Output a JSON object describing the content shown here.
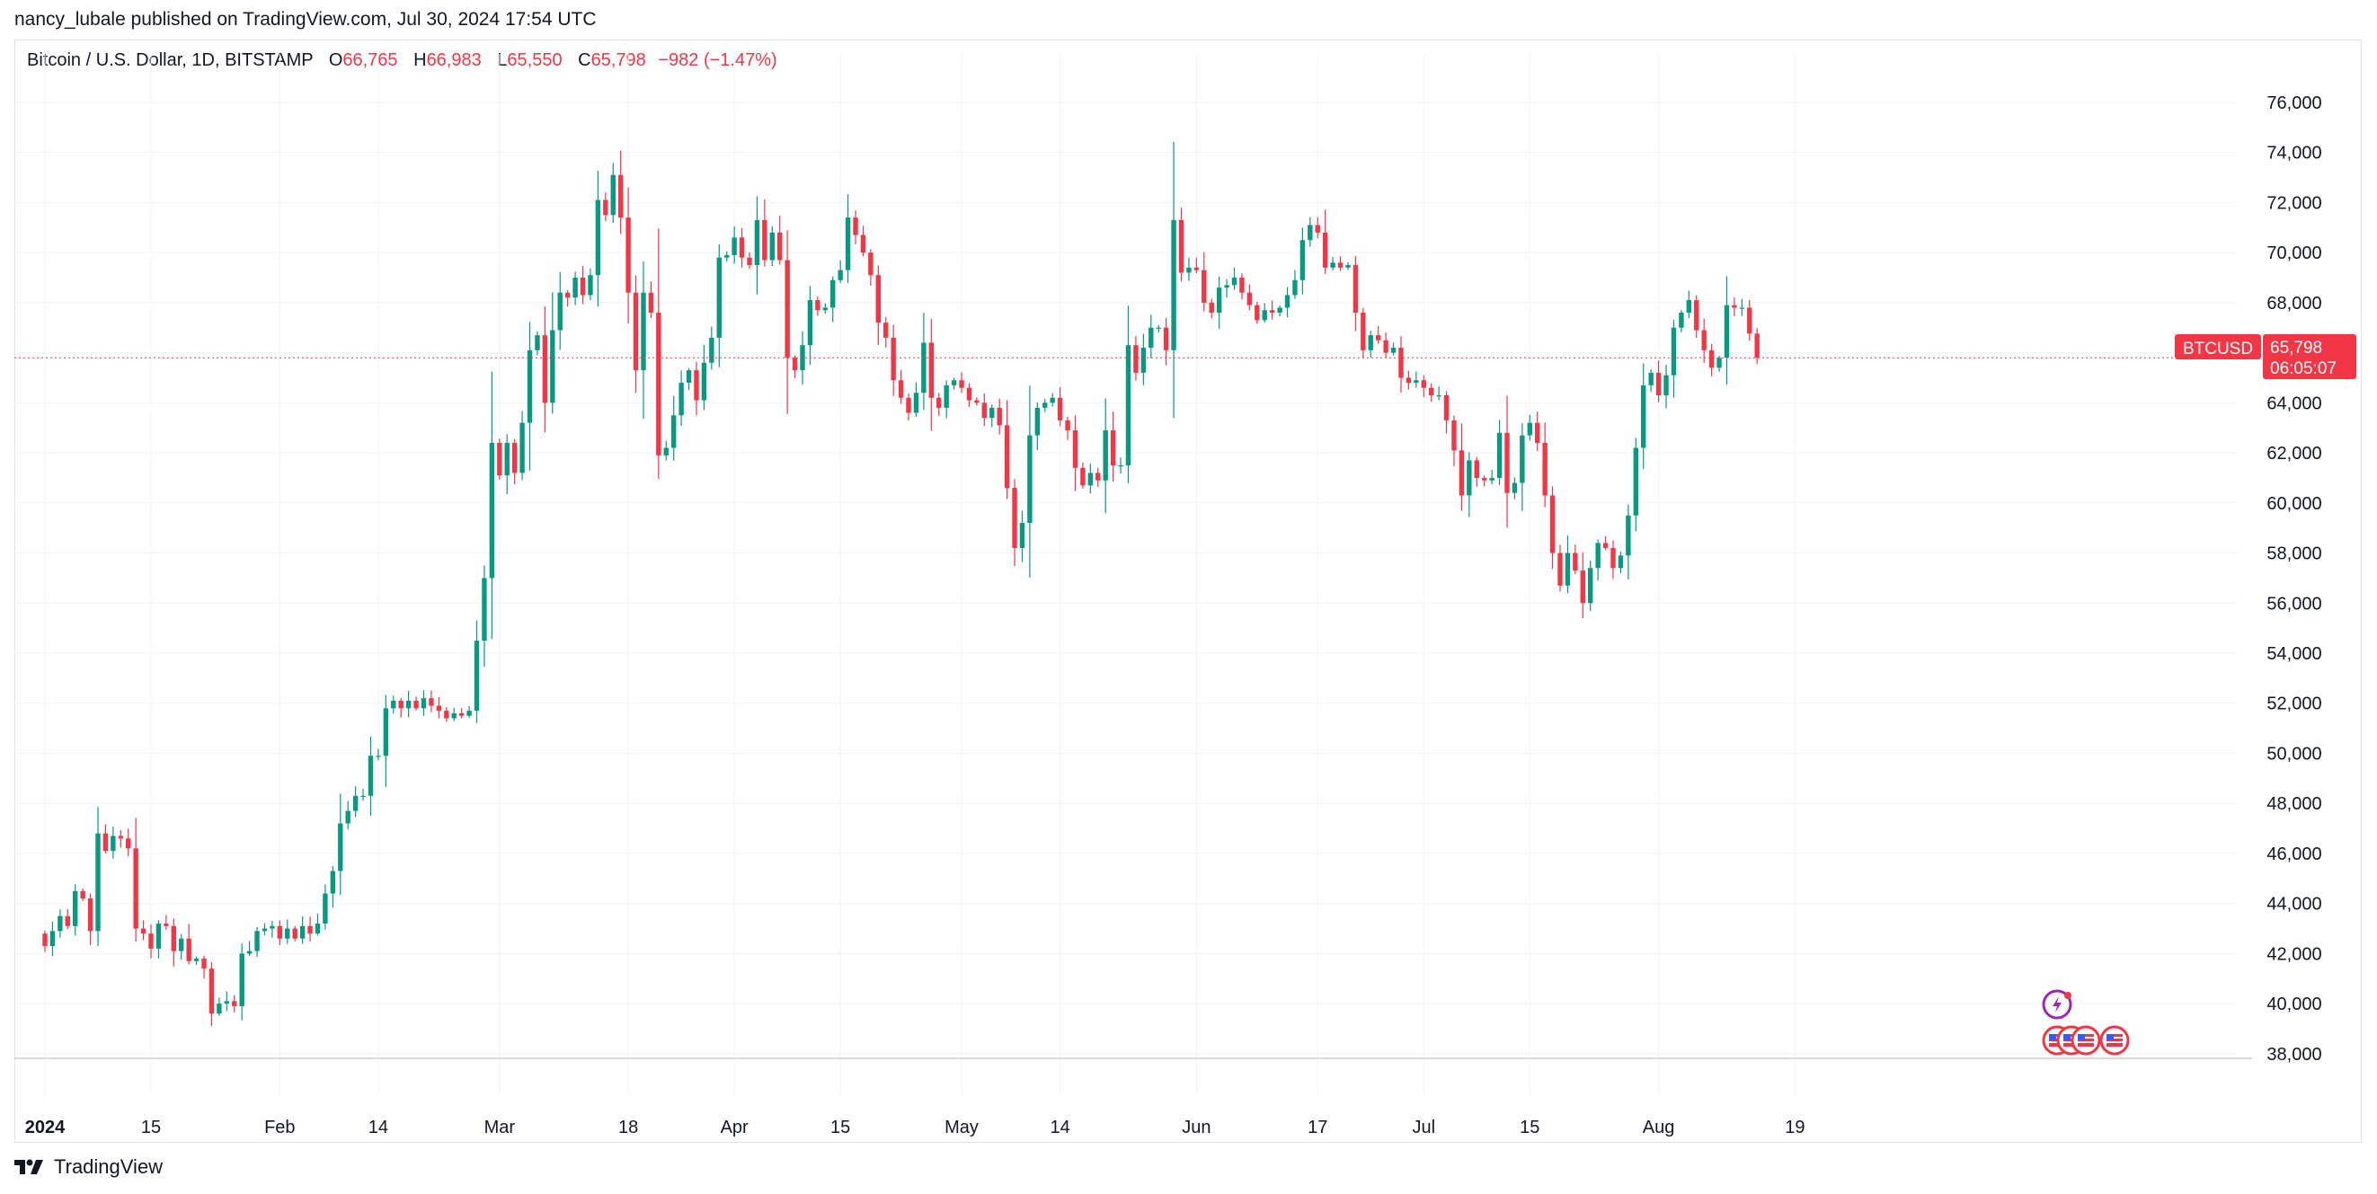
{
  "header": {
    "published_by": "nancy_lubale published on TradingView.com, Jul 30, 2024 17:54 UTC"
  },
  "legend": {
    "symbol": "Bitcoin / U.S. Dollar, 1D, BITSTAMP",
    "open_label": "O",
    "open": "66,765",
    "high_label": "H",
    "high": "66,983",
    "low_label": "L",
    "low": "65,550",
    "close_label": "C",
    "close": "65,798",
    "change": "−982 (−1.47%)"
  },
  "price_badge": {
    "ticker": "BTCUSD",
    "price": "65,798",
    "countdown": "06:05:07"
  },
  "footer": {
    "brand": "TradingView"
  },
  "colors": {
    "up": "#089981",
    "down": "#f23645",
    "grid": "#f0f3fa",
    "axis_text": "#131722"
  },
  "chart_data": {
    "type": "candlestick",
    "title": "Bitcoin / U.S. Dollar, 1D, BITSTAMP",
    "ylim": [
      37400,
      77200
    ],
    "y_ticks": [
      38000,
      40000,
      42000,
      44000,
      46000,
      48000,
      50000,
      52000,
      54000,
      56000,
      58000,
      60000,
      62000,
      64000,
      66000,
      68000,
      70000,
      72000,
      74000,
      76000
    ],
    "y_tick_labels": [
      "38,000",
      "40,000",
      "42,000",
      "44,000",
      "46,000",
      "48,000",
      "50,000",
      "52,000",
      "54,000",
      "56,000",
      "58,000",
      "60,000",
      "62,000",
      "64,000",
      "66,000",
      "68,000",
      "70,000",
      "72,000",
      "74,000",
      "76,000"
    ],
    "x_tick_labels": [
      {
        "day": 0,
        "label": "2024"
      },
      {
        "day": 14,
        "label": "15"
      },
      {
        "day": 31,
        "label": "Feb"
      },
      {
        "day": 44,
        "label": "14"
      },
      {
        "day": 60,
        "label": "Mar"
      },
      {
        "day": 77,
        "label": "18"
      },
      {
        "day": 91,
        "label": "Apr"
      },
      {
        "day": 105,
        "label": "15"
      },
      {
        "day": 121,
        "label": "May"
      },
      {
        "day": 134,
        "label": "14"
      },
      {
        "day": 152,
        "label": "Jun"
      },
      {
        "day": 168,
        "label": "17"
      },
      {
        "day": 182,
        "label": "Jul"
      },
      {
        "day": 196,
        "label": "15"
      },
      {
        "day": 213,
        "label": "Aug"
      },
      {
        "day": 231,
        "label": "19"
      }
    ],
    "x_range_days": [
      -3.3,
      233.5
    ],
    "last_close": 65798,
    "closes": [
      42300,
      42900,
      43500,
      43100,
      44500,
      44200,
      42900,
      46800,
      46100,
      46700,
      46600,
      46200,
      43000,
      42800,
      42200,
      43200,
      43100,
      42100,
      42600,
      41700,
      41800,
      41400,
      39600,
      40000,
      40100,
      39900,
      42000,
      42100,
      42900,
      43000,
      43100,
      42600,
      43000,
      42600,
      43100,
      42800,
      43200,
      44400,
      45300,
      47200,
      47700,
      48300,
      48300,
      49900,
      49900,
      51800,
      52100,
      51800,
      52100,
      51800,
      52200,
      51900,
      51700,
      51400,
      51600,
      51500,
      51700,
      54500,
      57000,
      62400,
      61100,
      62400,
      61200,
      63200,
      66100,
      66700,
      64000,
      66900,
      68400,
      68200,
      69000,
      68300,
      69100,
      72100,
      71500,
      73100,
      71400,
      68400,
      65300,
      68400,
      67600,
      61900,
      62200,
      63500,
      64800,
      65300,
      64100,
      65600,
      66600,
      69800,
      69900,
      70600,
      69800,
      69500,
      71300,
      69700,
      70800,
      69700,
      65800,
      65300,
      66300,
      68100,
      67700,
      67800,
      68900,
      69300,
      71400,
      70700,
      70000,
      69100,
      67200,
      66600,
      64900,
      64200,
      63600,
      64400,
      66400,
      64200,
      63800,
      64700,
      64900,
      64600,
      64100,
      64000,
      63400,
      63800,
      63100,
      60600,
      58200,
      59200,
      62700,
      63800,
      64000,
      64200,
      63300,
      62900,
      61400,
      60700,
      61200,
      60900,
      62900,
      61500,
      61500,
      66300,
      65200,
      66200,
      67000,
      67000,
      66100,
      71300,
      69200,
      69400,
      69300,
      68000,
      67600,
      68600,
      68700,
      69000,
      68400,
      67900,
      67300,
      67700,
      67600,
      67800,
      68300,
      68900,
      70500,
      71100,
      70800,
      69400,
      69600,
      69400,
      69500,
      67600,
      66100,
      66700,
      66500,
      66000,
      66200,
      65000,
      64800,
      64900,
      64600,
      64300,
      64300,
      63300,
      62100,
      60300,
      61700,
      61000,
      60900,
      61000,
      62800,
      60400,
      60800,
      62700,
      63200,
      62400,
      60300,
      58000,
      56700,
      58000,
      57300,
      56000,
      57400,
      58400,
      58200,
      57400,
      57900,
      59500,
      62200,
      64700,
      65200,
      64300,
      65100,
      67000,
      67600,
      68100,
      66900,
      66100,
      65400,
      65800,
      67900,
      67800,
      67800,
      66765,
      65798
    ]
  }
}
